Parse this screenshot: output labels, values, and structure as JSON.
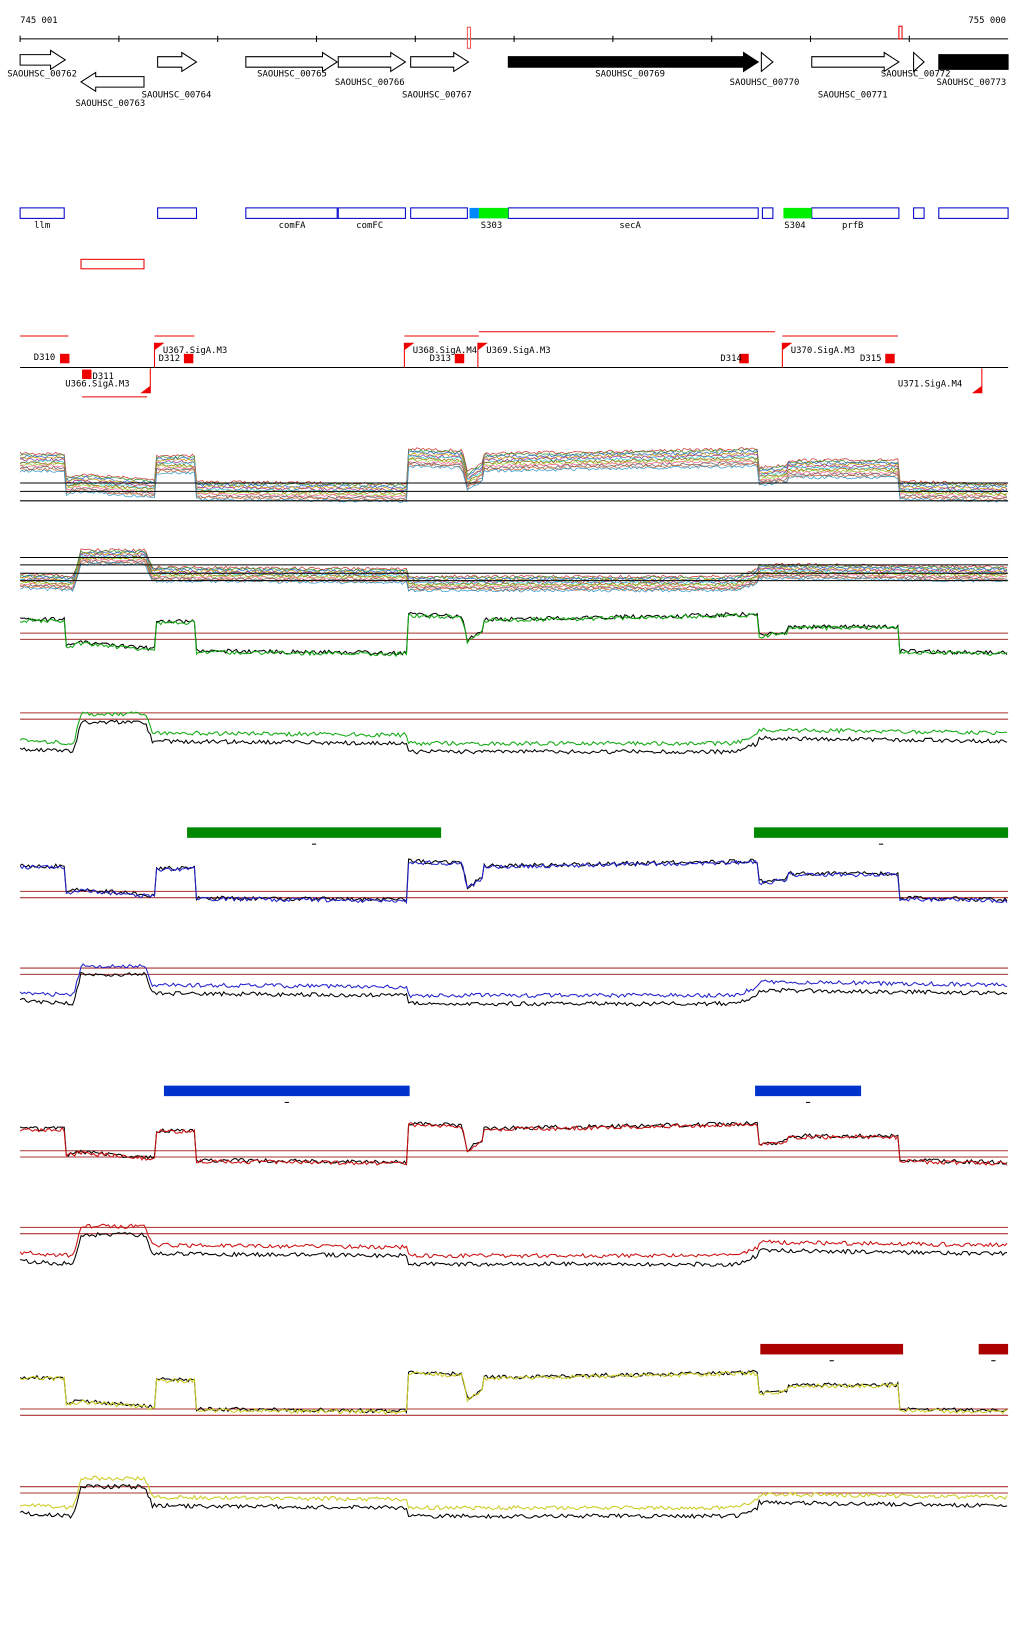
{
  "header": {
    "start": "745 001",
    "end": "755 000"
  },
  "genes": [
    {
      "label": "SAOUHSC_00762"
    },
    {
      "label": "SAOUHSC_00763"
    },
    {
      "label": "SAOUHSC_00764"
    },
    {
      "label": "SAOUHSC_00765"
    },
    {
      "label": "SAOUHSC_00766"
    },
    {
      "label": "SAOUHSC_00767"
    },
    {
      "label": "SAOUHSC_00769"
    },
    {
      "label": "SAOUHSC_00770"
    },
    {
      "label": "SAOUHSC_00771"
    },
    {
      "label": "SAOUHSC_00772"
    },
    {
      "label": "SAOUHSC_00773"
    }
  ],
  "features": [
    {
      "label": "llm"
    },
    {
      "label": "comFA"
    },
    {
      "label": "comFC"
    },
    {
      "label": "S303"
    },
    {
      "label": "secA"
    },
    {
      "label": "S304"
    },
    {
      "label": "prfB"
    }
  ],
  "promoters": [
    {
      "label": "D310"
    },
    {
      "label": "D311"
    },
    {
      "label": "U366.SigA.M3"
    },
    {
      "label": "U367.SigA.M3"
    },
    {
      "label": "D312"
    },
    {
      "label": "U368.SigA.M4"
    },
    {
      "label": "D313"
    },
    {
      "label": "U369.SigA.M3"
    },
    {
      "label": "D314"
    },
    {
      "label": "U370.SigA.M3"
    },
    {
      "label": "D315"
    },
    {
      "label": "U371.SigA.M4"
    }
  ]
}
